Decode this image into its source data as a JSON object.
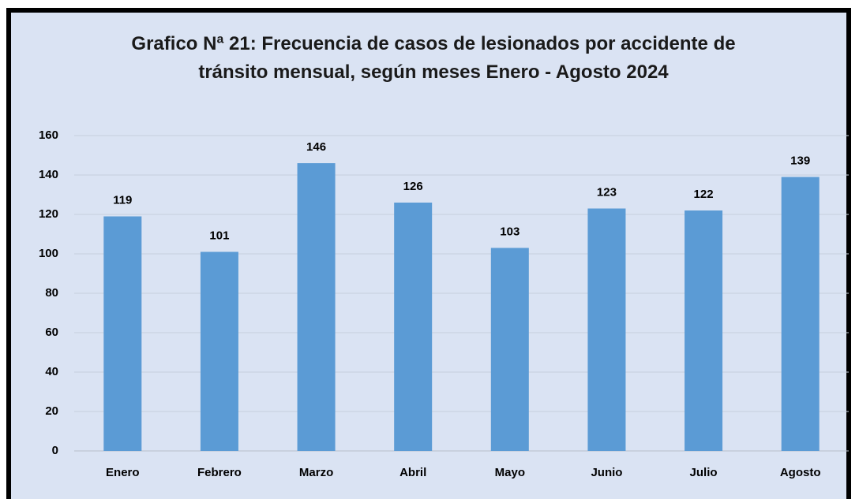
{
  "chart_data": {
    "type": "bar",
    "title": "Grafico Nª 21: Frecuencia de casos de lesionados por accidente de\ntránsito mensual, según meses Enero - Agosto 2024",
    "categories": [
      "Enero",
      "Febrero",
      "Marzo",
      "Abril",
      "Mayo",
      "Junio",
      "Julio",
      "Agosto"
    ],
    "values": [
      119,
      101,
      146,
      126,
      103,
      123,
      122,
      139
    ],
    "color": "#5b9bd5",
    "ylim": [
      0,
      160
    ],
    "yticks": [
      0,
      20,
      40,
      60,
      80,
      100,
      120,
      140,
      160
    ],
    "grid": true
  }
}
